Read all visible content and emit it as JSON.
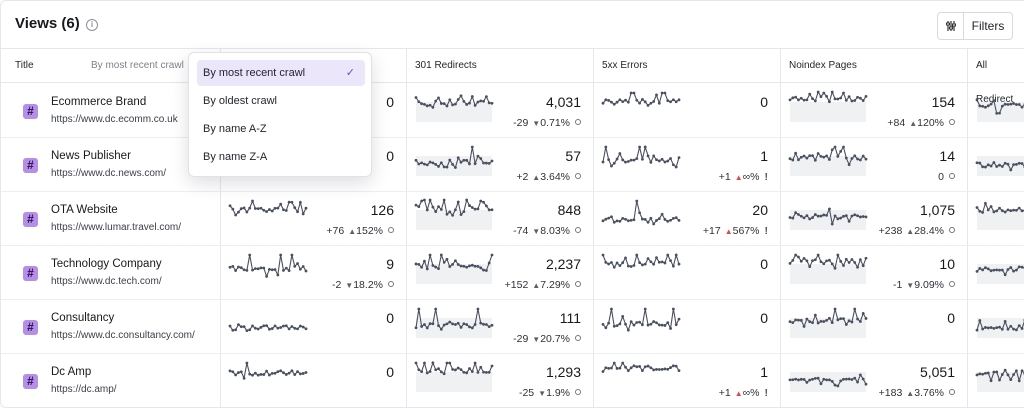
{
  "header": {
    "title": "Views (6)",
    "filters_label": "Filters"
  },
  "icons": {
    "info": "info-icon",
    "sliders": "sliders-icon",
    "site": "hash-icon",
    "check": "check-icon"
  },
  "colors": {
    "accent": "#b58ee8",
    "selected_bg": "#ece6fb",
    "alert_red": "#e0484f"
  },
  "columns": {
    "title": "Title",
    "sort_note": "By most recent crawl",
    "redirects": "301 Redirects",
    "errors": "5xx Errors",
    "noindex": "Noindex Pages",
    "all_redirects": "All Redirect"
  },
  "sort_dropdown": {
    "options": [
      "By most recent crawl",
      "By oldest crawl",
      "By name A-Z",
      "By name Z-A"
    ],
    "selected": "By most recent crawl"
  },
  "rows": [
    {
      "name": "Ecommerce Brand",
      "url": "https://www.dc.ecomm.co.uk",
      "col1": {
        "value": "0",
        "delta": "",
        "pct": "",
        "dir": ""
      },
      "redirects": {
        "value": "4,031",
        "delta": "-29",
        "pct": "0.71%",
        "dir": "down"
      },
      "errors": {
        "value": "0",
        "delta": "",
        "pct": "",
        "dir": ""
      },
      "noindex": {
        "value": "154",
        "delta": "+84",
        "pct": "120%",
        "dir": "up"
      }
    },
    {
      "name": "News Publisher",
      "url": "https://www.dc.news.com/",
      "col1": {
        "value": "0",
        "delta": "",
        "pct": "",
        "dir": ""
      },
      "redirects": {
        "value": "57",
        "delta": "+2",
        "pct": "3.64%",
        "dir": "up"
      },
      "errors": {
        "value": "1",
        "delta": "+1",
        "pct": "∞%",
        "dir": "up-bad"
      },
      "noindex": {
        "value": "14",
        "delta": "0",
        "pct": "",
        "dir": ""
      }
    },
    {
      "name": "OTA Website",
      "url": "https://www.lumar.travel.com/",
      "col1": {
        "value": "126",
        "delta": "+76",
        "pct": "152%",
        "dir": "up"
      },
      "redirects": {
        "value": "848",
        "delta": "-74",
        "pct": "8.03%",
        "dir": "down"
      },
      "errors": {
        "value": "20",
        "delta": "+17",
        "pct": "567%",
        "dir": "up-bad"
      },
      "noindex": {
        "value": "1,075",
        "delta": "+238",
        "pct": "28.4%",
        "dir": "up"
      }
    },
    {
      "name": "Technology Company",
      "url": "https://www.dc.tech.com/",
      "col1": {
        "value": "9",
        "delta": "-2",
        "pct": "18.2%",
        "dir": "down"
      },
      "redirects": {
        "value": "2,237",
        "delta": "+152",
        "pct": "7.29%",
        "dir": "up"
      },
      "errors": {
        "value": "0",
        "delta": "",
        "pct": "",
        "dir": ""
      },
      "noindex": {
        "value": "10",
        "delta": "-1",
        "pct": "9.09%",
        "dir": "down"
      }
    },
    {
      "name": "Consultancy",
      "url": "https://www.dc.consultancy.com/",
      "col1": {
        "value": "0",
        "delta": "",
        "pct": "",
        "dir": ""
      },
      "redirects": {
        "value": "111",
        "delta": "-29",
        "pct": "20.7%",
        "dir": "down"
      },
      "errors": {
        "value": "0",
        "delta": "",
        "pct": "",
        "dir": ""
      },
      "noindex": {
        "value": "0",
        "delta": "",
        "pct": "",
        "dir": ""
      }
    },
    {
      "name": "Dc Amp",
      "url": "https://dc.amp/",
      "col1": {
        "value": "0",
        "delta": "",
        "pct": "",
        "dir": ""
      },
      "redirects": {
        "value": "1,293",
        "delta": "-25",
        "pct": "1.9%",
        "dir": "down"
      },
      "errors": {
        "value": "1",
        "delta": "+1",
        "pct": "∞%",
        "dir": "up-bad"
      },
      "noindex": {
        "value": "5,051",
        "delta": "+183",
        "pct": "3.76%",
        "dir": "up"
      }
    }
  ]
}
